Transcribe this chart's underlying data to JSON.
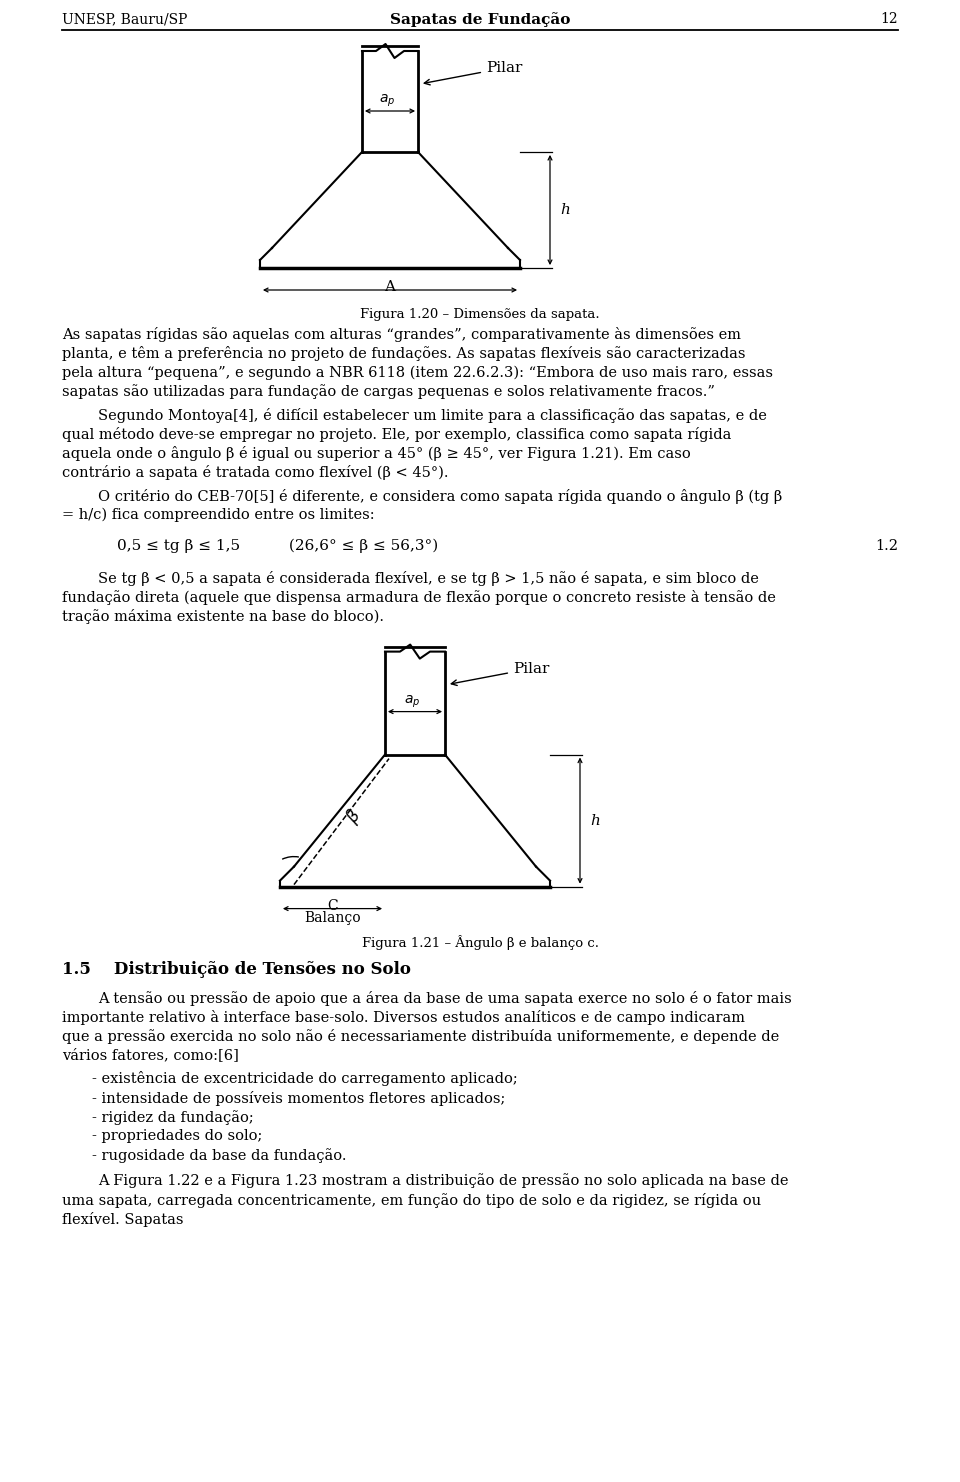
{
  "page_title": "Sapatas de Fundação",
  "page_left": "UNESP, Bauru/SP",
  "page_number": "12",
  "fig1_caption": "Figura 1.20 – Dimensões da sapata.",
  "fig2_caption": "Figura 1.21 – Ângulo β e balanço c.",
  "section_title": "1.5    Distribuição de Tensões no Solo",
  "paragraph1": "As sapatas rígidas são aquelas com alturas “grandes”, comparativamente às dimensões em planta, e têm a preferência no projeto de fundações. As sapatas flexíveis são caracterizadas pela altura “pequena”, e segundo a NBR 6118 (item 22.6.2.3): “Embora de uso mais raro, essas sapatas são utilizadas para fundação de cargas pequenas e solos relativamente fracos.”",
  "paragraph2": "Segundo Montoya[4], é difícil estabelecer um limite para a classificação das sapatas, e de qual método deve-se empregar no projeto. Ele, por exemplo, classifica como sapata rígida aquela onde o ângulo β é igual ou superior a 45° (β ≥ 45°, ver Figura 1.21). Em caso contrário a sapata é tratada como flexível (β < 45°).",
  "paragraph3": "O critério do CEB-70[5] é diferente, e considera como sapata rígida quando o ângulo β (tg β = h/c) fica compreendido entre os limites:",
  "formula": "0,5 ≤ tg β ≤ 1,5          (26,6° ≤ β ≤ 56,3°)",
  "formula_number": "1.2",
  "paragraph4": "Se tg β < 0,5 a sapata é considerada flexível, e se tg β > 1,5 não é sapata, e sim bloco de fundação direta (aquele que dispensa armadura de flexão porque o concreto resiste à tensão de tração máxima existente na base do bloco).",
  "paragraph5": "A tensão ou pressão de apoio que a área da base de uma sapata exerce no solo é o fator mais importante relativo à interface base-solo. Diversos estudos analíticos e de campo indicaram que a pressão exercida no solo não é necessariamente distribuída uniformemente, e depende de vários fatores, como:[6]",
  "bullets": [
    "- existência de excentricidade do carregamento aplicado;",
    "- intensidade de possíveis momentos fletores aplicados;",
    "- rigidez da fundação;",
    "- propriedades do solo;",
    "- rugosidade da base da fundação."
  ],
  "paragraph6": "A Figura 1.22 e a Figura 1.23 mostram a distribuição de pressão no solo aplicada na base de uma sapata, carregada concentricamente, em função do tipo de solo e da rigidez, se rígida ou flexível. Sapatas",
  "bg": "#ffffff",
  "fg": "#000000"
}
